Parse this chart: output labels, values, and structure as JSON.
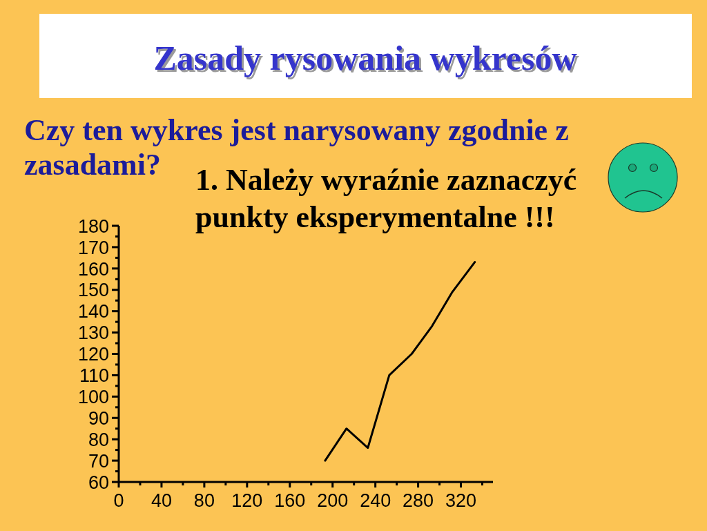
{
  "chart_data": {
    "type": "line",
    "title": "Zasady rysowania wykresów",
    "subtitle": "Czy ten wykres jest narysowany zgodnie z\nzasadami?",
    "annotations": [
      "1. Należy wyraźnie zaznaczyć\npunkty eksperymentalne !!!"
    ],
    "x": [
      193,
      213,
      233,
      253,
      274,
      293,
      312,
      333
    ],
    "series": [
      {
        "color": "#000000",
        "values": [
          70,
          85,
          76,
          110,
          120,
          133,
          149,
          163
        ]
      }
    ],
    "xlim": [
      0,
      350
    ],
    "xticks": [
      0,
      {
        "value": 20,
        "label": null
      },
      40,
      {
        "value": 60,
        "label": null
      },
      80,
      {
        "value": 100,
        "label": null
      },
      120,
      {
        "value": 140,
        "label": null
      },
      160,
      {
        "value": 180,
        "label": null
      },
      200,
      {
        "value": 220,
        "label": null
      },
      240,
      {
        "value": 260,
        "label": null
      },
      280,
      {
        "value": 300,
        "label": null
      },
      320,
      {
        "value": 340,
        "label": null
      }
    ],
    "ylim": [
      60,
      180
    ],
    "yticks": [
      60,
      {
        "value": 65,
        "label": null
      },
      70,
      {
        "value": 75,
        "label": null
      },
      80,
      {
        "value": 85,
        "label": null
      },
      90,
      {
        "value": 95,
        "label": null
      },
      100,
      {
        "value": 105,
        "label": null
      },
      110,
      {
        "value": 115,
        "label": null
      },
      120,
      {
        "value": 125,
        "label": null
      },
      130,
      {
        "value": 135,
        "label": null
      },
      140,
      {
        "value": 145,
        "label": null
      },
      150,
      {
        "value": 155,
        "label": null
      },
      160,
      {
        "value": 165,
        "label": null
      },
      170,
      {
        "value": 175,
        "label": null
      },
      180
    ]
  }
}
